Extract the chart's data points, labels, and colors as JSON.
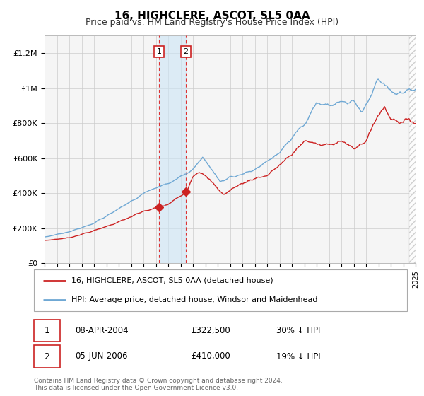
{
  "title": "16, HIGHCLERE, ASCOT, SL5 0AA",
  "subtitle": "Price paid vs. HM Land Registry's House Price Index (HPI)",
  "hpi_label": "HPI: Average price, detached house, Windsor and Maidenhead",
  "price_label": "16, HIGHCLERE, ASCOT, SL5 0AA (detached house)",
  "footer": "Contains HM Land Registry data © Crown copyright and database right 2024.\nThis data is licensed under the Open Government Licence v3.0.",
  "hpi_color": "#6fa8d4",
  "price_color": "#cc2222",
  "marker_color": "#cc2222",
  "sale1_date_num": 2004.27,
  "sale1_price": 322500,
  "sale1_label": "08-APR-2004",
  "sale1_price_str": "£322,500",
  "sale1_hpi_str": "30% ↓ HPI",
  "sale2_date_num": 2006.43,
  "sale2_price": 410000,
  "sale2_label": "05-JUN-2006",
  "sale2_price_str": "£410,000",
  "sale2_hpi_str": "19% ↓ HPI",
  "xmin": 1995,
  "xmax": 2025,
  "ymin": 0,
  "ymax": 1300000,
  "yticks": [
    0,
    200000,
    400000,
    600000,
    800000,
    1000000,
    1200000
  ],
  "ytick_labels": [
    "£0",
    "£200K",
    "£400K",
    "£600K",
    "£800K",
    "£1M",
    "£1.2M"
  ],
  "shade_xmin": 2004.27,
  "shade_xmax": 2006.43,
  "hatch_xmin": 2024.5,
  "hatch_xmax": 2025.0,
  "background_color": "#f5f5f5"
}
